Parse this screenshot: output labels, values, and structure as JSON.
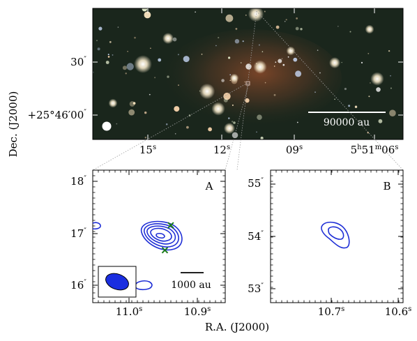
{
  "figure": {
    "ylabel": "Dec. (J2000)",
    "xlabel": "R.A. (J2000)"
  },
  "colors": {
    "contour": "#1f2fd6",
    "cross": "#1a7a1a",
    "beam_fill": "#1a2ee0",
    "scalebar_top": "#ffffff",
    "scalebar_bottom": "#000000"
  },
  "chart_data": [
    {
      "type": "image",
      "panel": "top",
      "x_ticks": [
        {
          "main": "15",
          "sup": "s"
        },
        {
          "main": "12",
          "sup": "s"
        },
        {
          "main": "09",
          "sup": "s"
        },
        {
          "main": "5",
          "sup": "h",
          "main2": "51",
          "sup2": "m",
          "main3": "06",
          "sup3": "s"
        }
      ],
      "y_ticks": [
        {
          "main": "30",
          "sup": "″"
        },
        {
          "main": "+25°46′00",
          "sup": "″"
        }
      ],
      "scalebar_label": "90000 au",
      "beam_marker": "white-dot"
    },
    {
      "type": "contour",
      "panel": "A",
      "label": "A",
      "x_ticks": [
        {
          "main": "11.0",
          "sup": "s"
        },
        {
          "main": "10.9",
          "sup": "s"
        }
      ],
      "y_ticks": [
        {
          "main": "18",
          "sup": "″"
        },
        {
          "main": "17",
          "sup": "″"
        },
        {
          "main": "16",
          "sup": "″"
        }
      ],
      "x_range": [
        11.05,
        10.87
      ],
      "y_range": [
        15.75,
        18.2
      ],
      "scalebar_label": "1000 au",
      "contour_levels": 5,
      "markers": [
        {
          "shape": "x",
          "ra": 10.944,
          "dec": 17.18
        },
        {
          "shape": "x",
          "ra": 10.952,
          "dec": 16.72
        }
      ]
    },
    {
      "type": "contour",
      "panel": "B",
      "label": "B",
      "x_ticks": [
        {
          "main": "10.7",
          "sup": "s"
        },
        {
          "main": "10.6",
          "sup": "s"
        }
      ],
      "y_ticks": [
        {
          "main": "55",
          "sup": "″"
        },
        {
          "main": "54",
          "sup": "″"
        },
        {
          "main": "53",
          "sup": "″"
        }
      ],
      "x_range": [
        10.78,
        10.59
      ],
      "y_range": [
        52.6,
        55.2
      ],
      "contour_levels": 2
    }
  ]
}
